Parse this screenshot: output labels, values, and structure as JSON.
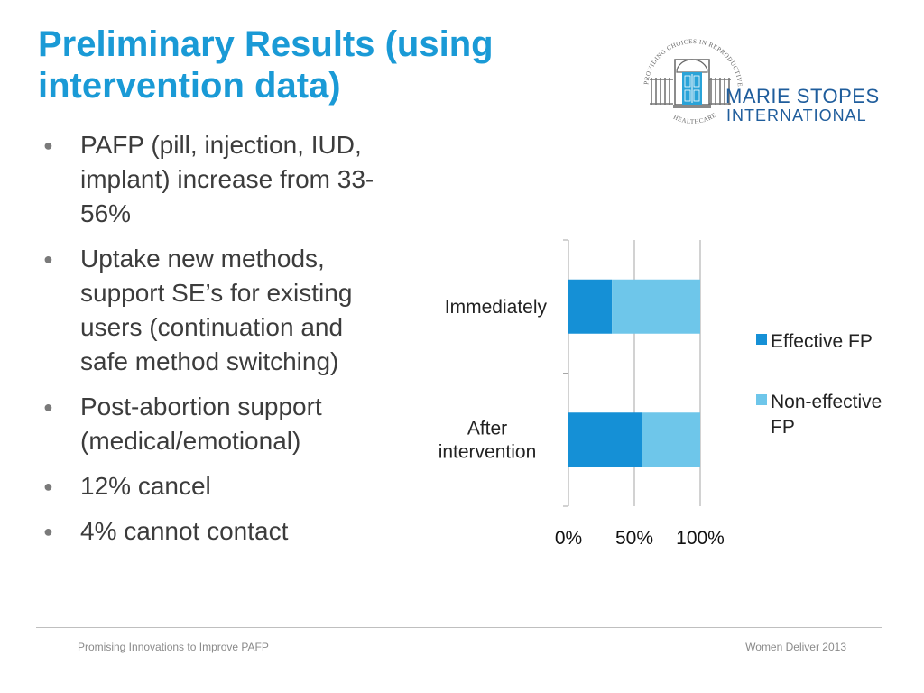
{
  "slide": {
    "title": "Preliminary Results (using intervention data)",
    "bullets": [
      "PAFP (pill, injection, IUD, implant) increase from 33-56%",
      "Uptake new methods, support SE’s for existing users (continuation and safe method switching)",
      "Post-abortion support (medical/emotional)",
      "12% cancel",
      "4% cannot contact"
    ],
    "bullet_symbol": "●"
  },
  "logo": {
    "name_line1": "MARIE STOPES",
    "name_line2": "INTERNATIONAL",
    "ring_top": "PROVIDING CHOICES IN REPRODUCTIVE",
    "ring_bottom": "HEALTHCARE",
    "colors": {
      "text": "#1f5d9c",
      "door": "#2aa3d8",
      "railing": "#777777"
    }
  },
  "chart_data": {
    "type": "bar",
    "orientation": "horizontal",
    "stacked": "percent",
    "categories": [
      "Immediately",
      "After intervention"
    ],
    "series": [
      {
        "name": "Effective FP",
        "values": [
          33,
          56
        ],
        "color": "#1590d6"
      },
      {
        "name": "Non-effective FP",
        "values": [
          67,
          44
        ],
        "color": "#6ec6ea"
      }
    ],
    "x_ticks": [
      "0%",
      "50%",
      "100%"
    ],
    "xlim": [
      0,
      100
    ],
    "grid": true,
    "legend_position": "right"
  },
  "footer": {
    "left": "Promising Innovations to  Improve PAFP",
    "right": "Women Deliver 2013"
  }
}
